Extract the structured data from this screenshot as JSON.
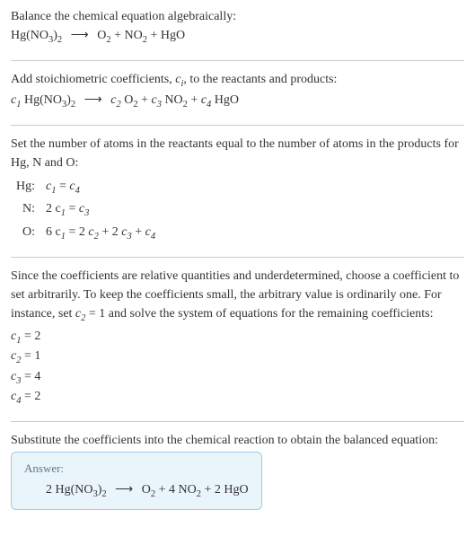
{
  "intro": {
    "line1": "Balance the chemical equation algebraically:",
    "reactant": "Hg(NO",
    "reactant_sub1": "3",
    "reactant_close": ")",
    "reactant_sub2": "2",
    "arrow": "⟶",
    "p1": "O",
    "p1_sub": "2",
    "plus": " + ",
    "p2": "NO",
    "p2_sub": "2",
    "p3": "HgO"
  },
  "step1": {
    "text_a": "Add stoichiometric coefficients, ",
    "ci": "c",
    "ci_sub": "i",
    "text_b": ", to the reactants and products:",
    "c1": "c",
    "c1s": "1",
    "hgno": "Hg(NO",
    "hgno_s1": "3",
    "hgno_close": ")",
    "hgno_s2": "2",
    "arrow": "⟶",
    "c2": "c",
    "c2s": "2",
    "O2": "O",
    "O2s": "2",
    "plus": " + ",
    "c3": "c",
    "c3s": "3",
    "NO2": "NO",
    "NO2s": "2",
    "c4": "c",
    "c4s": "4",
    "HgO": "HgO"
  },
  "step2": {
    "text": "Set the number of atoms in the reactants equal to the number of atoms in the products for Hg, N and O:",
    "rows": [
      {
        "el": "Hg:",
        "eq_left": "c",
        "s1": "1",
        "mid": " = ",
        "eq_right": "c",
        "s2": "4",
        "suffix": ""
      },
      {
        "el": "N:",
        "eq_left": "2 c",
        "s1": "1",
        "mid": " = ",
        "eq_right": "c",
        "s2": "3",
        "suffix": ""
      },
      {
        "el": "O:",
        "eq_left": "6 c",
        "s1": "1",
        "mid": " = 2 ",
        "eq_right": "c",
        "s2": "2",
        "suffix_a": " + 2 ",
        "r2": "c",
        "s3": "3",
        "suffix_b": " + ",
        "r3": "c",
        "s4": "4"
      }
    ]
  },
  "step3": {
    "text_a": "Since the coefficients are relative quantities and underdetermined, choose a coefficient to set arbitrarily. To keep the coefficients small, the arbitrary value is ordinarily one. For instance, set ",
    "cv": "c",
    "cvs": "2",
    "text_b": " = 1 and solve the system of equations for the remaining coefficients:",
    "coeffs": [
      {
        "c": "c",
        "s": "1",
        "v": " = 2"
      },
      {
        "c": "c",
        "s": "2",
        "v": " = 1"
      },
      {
        "c": "c",
        "s": "3",
        "v": " = 4"
      },
      {
        "c": "c",
        "s": "4",
        "v": " = 2"
      }
    ]
  },
  "step4": {
    "text": "Substitute the coefficients into the chemical reaction to obtain the balanced equation:"
  },
  "answer": {
    "label": "Answer:",
    "n1": "2 ",
    "r": "Hg(NO",
    "rs1": "3",
    "rclose": ")",
    "rs2": "2",
    "arrow": "⟶",
    "o2": "O",
    "o2s": "2",
    "plus1": " + 4 ",
    "no2": "NO",
    "no2s": "2",
    "plus2": " + 2 ",
    "hgo": "HgO"
  },
  "colors": {
    "text": "#333333",
    "divider": "#cccccc",
    "answer_bg": "#eaf5fb",
    "answer_border": "#9ecde8",
    "answer_label": "#5b7a8c"
  }
}
